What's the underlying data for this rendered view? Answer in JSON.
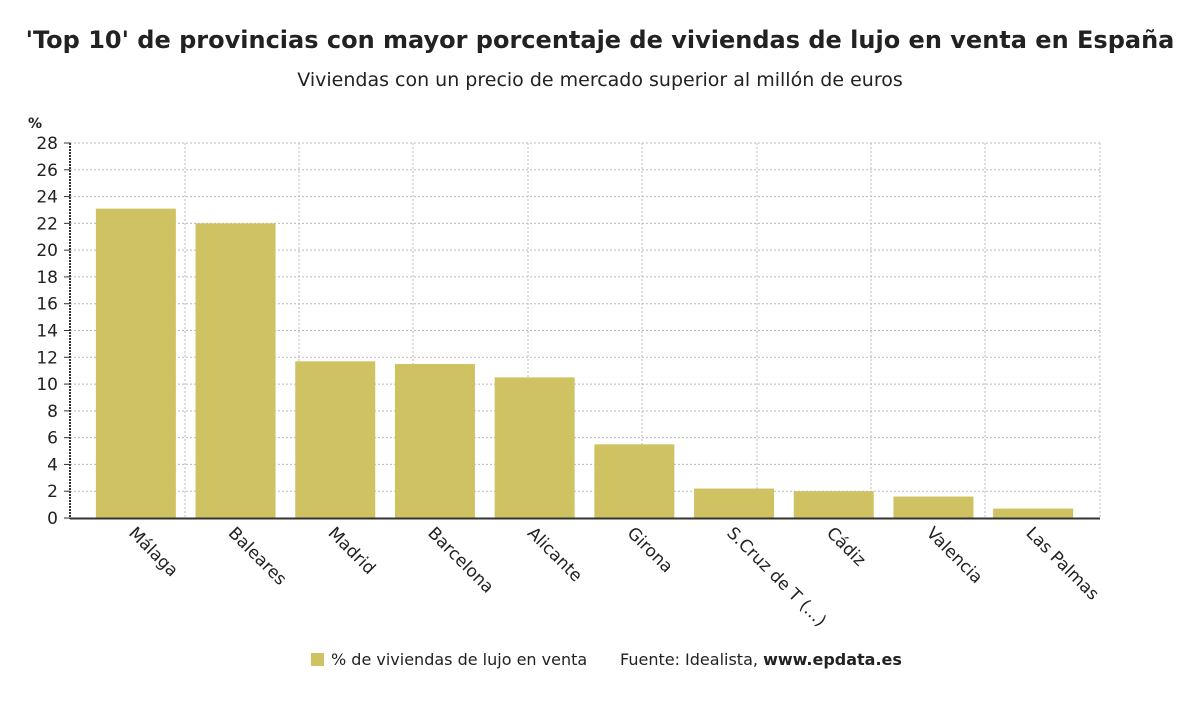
{
  "chart_data": {
    "type": "bar",
    "title": "'Top 10' de provincias con mayor porcentaje de viviendas de lujo en venta en España",
    "subtitle": "Viviendas con un precio de mercado superior al millón de euros",
    "y_label": "%",
    "categories": [
      "Málaga",
      "Baleares",
      "Madrid",
      "Barcelona",
      "Alicante",
      "Girona",
      "S.Cruz de T (...)",
      "Cádiz",
      "Valencia",
      "Las Palmas"
    ],
    "series": [
      {
        "name": "% de viviendas de lujo en venta",
        "color": "#cfc262",
        "values": [
          23.1,
          22.0,
          11.7,
          11.5,
          10.5,
          5.5,
          2.2,
          2.0,
          1.6,
          0.7
        ]
      }
    ],
    "ylim": [
      0,
      28
    ],
    "yticks": [
      0,
      2,
      4,
      6,
      8,
      10,
      12,
      14,
      16,
      18,
      20,
      22,
      24,
      26,
      28
    ],
    "grid": true,
    "source": "Fuente: Idealista,",
    "source_link": "www.epdata.es"
  }
}
